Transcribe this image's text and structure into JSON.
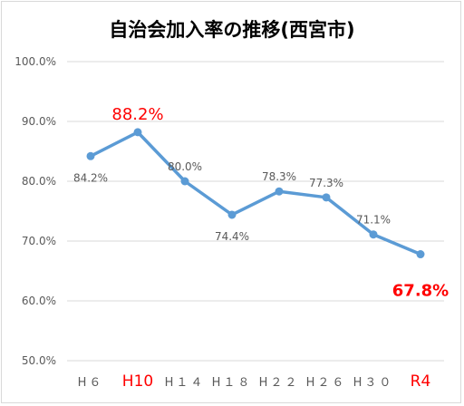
{
  "chart_data": {
    "type": "line",
    "title": "自治会加入率の推移(西宮市)",
    "categories": [
      "H６",
      "H10",
      "H１４",
      "H１８",
      "H２２",
      "H２６",
      "H３０",
      "R4"
    ],
    "series": [
      {
        "values": [
          84.2,
          88.2,
          80.0,
          74.4,
          78.3,
          77.3,
          71.1,
          67.8
        ]
      }
    ],
    "data_labels": [
      "84.2%",
      "88.2%",
      "80.0%",
      "74.4%",
      "78.3%",
      "77.3%",
      "71.1%",
      "67.8%"
    ],
    "highlighted_categories": [
      1,
      7
    ],
    "y_ticks": [
      "50.0%",
      "60.0%",
      "70.0%",
      "80.0%",
      "90.0%",
      "100.0%"
    ],
    "ylim": [
      50,
      100
    ],
    "grid": true,
    "colors": {
      "line": "#5b9bd5",
      "highlight": "#ff0000",
      "grid": "#d9d9d9",
      "text": "#595959",
      "title": "#000000"
    }
  }
}
